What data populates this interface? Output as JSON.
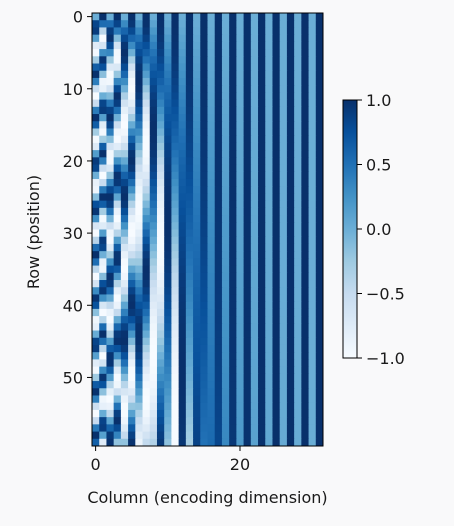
{
  "chart_data": {
    "type": "heatmap",
    "title": "",
    "description_source": "sinusoidal positional encoding matrix",
    "rows": 60,
    "cols": 32,
    "encoding": {
      "value_formula": "even column 2i: sin(pos / 10000^(2i/32)); odd column 2i+1: cos(pos / 10000^(2i/32))",
      "num_hiddens": 32,
      "base": 10000
    },
    "xlabel": "Column (encoding dimension)",
    "ylabel": "Row (position)",
    "xticks": [
      0,
      20
    ],
    "yticks": [
      0,
      10,
      20,
      30,
      40,
      50
    ],
    "xlim": [
      -0.5,
      31.5
    ],
    "ylim": [
      59.5,
      -0.5
    ],
    "colormap": "Blues",
    "colorbar": {
      "range": [
        -1.0,
        1.0
      ],
      "ticks": [
        1.0,
        0.5,
        0.0,
        -0.5,
        -1.0
      ],
      "tick_labels": [
        "1.0",
        "0.5",
        "0.0",
        "−0.5",
        "−1.0"
      ]
    }
  },
  "colors": {
    "background": "#f9f9fa",
    "cmap_stops": [
      "#f7fbff",
      "#deebf7",
      "#c6dbef",
      "#9ecae1",
      "#6baed6",
      "#4292c6",
      "#2171b5",
      "#08519c",
      "#08306b"
    ]
  }
}
